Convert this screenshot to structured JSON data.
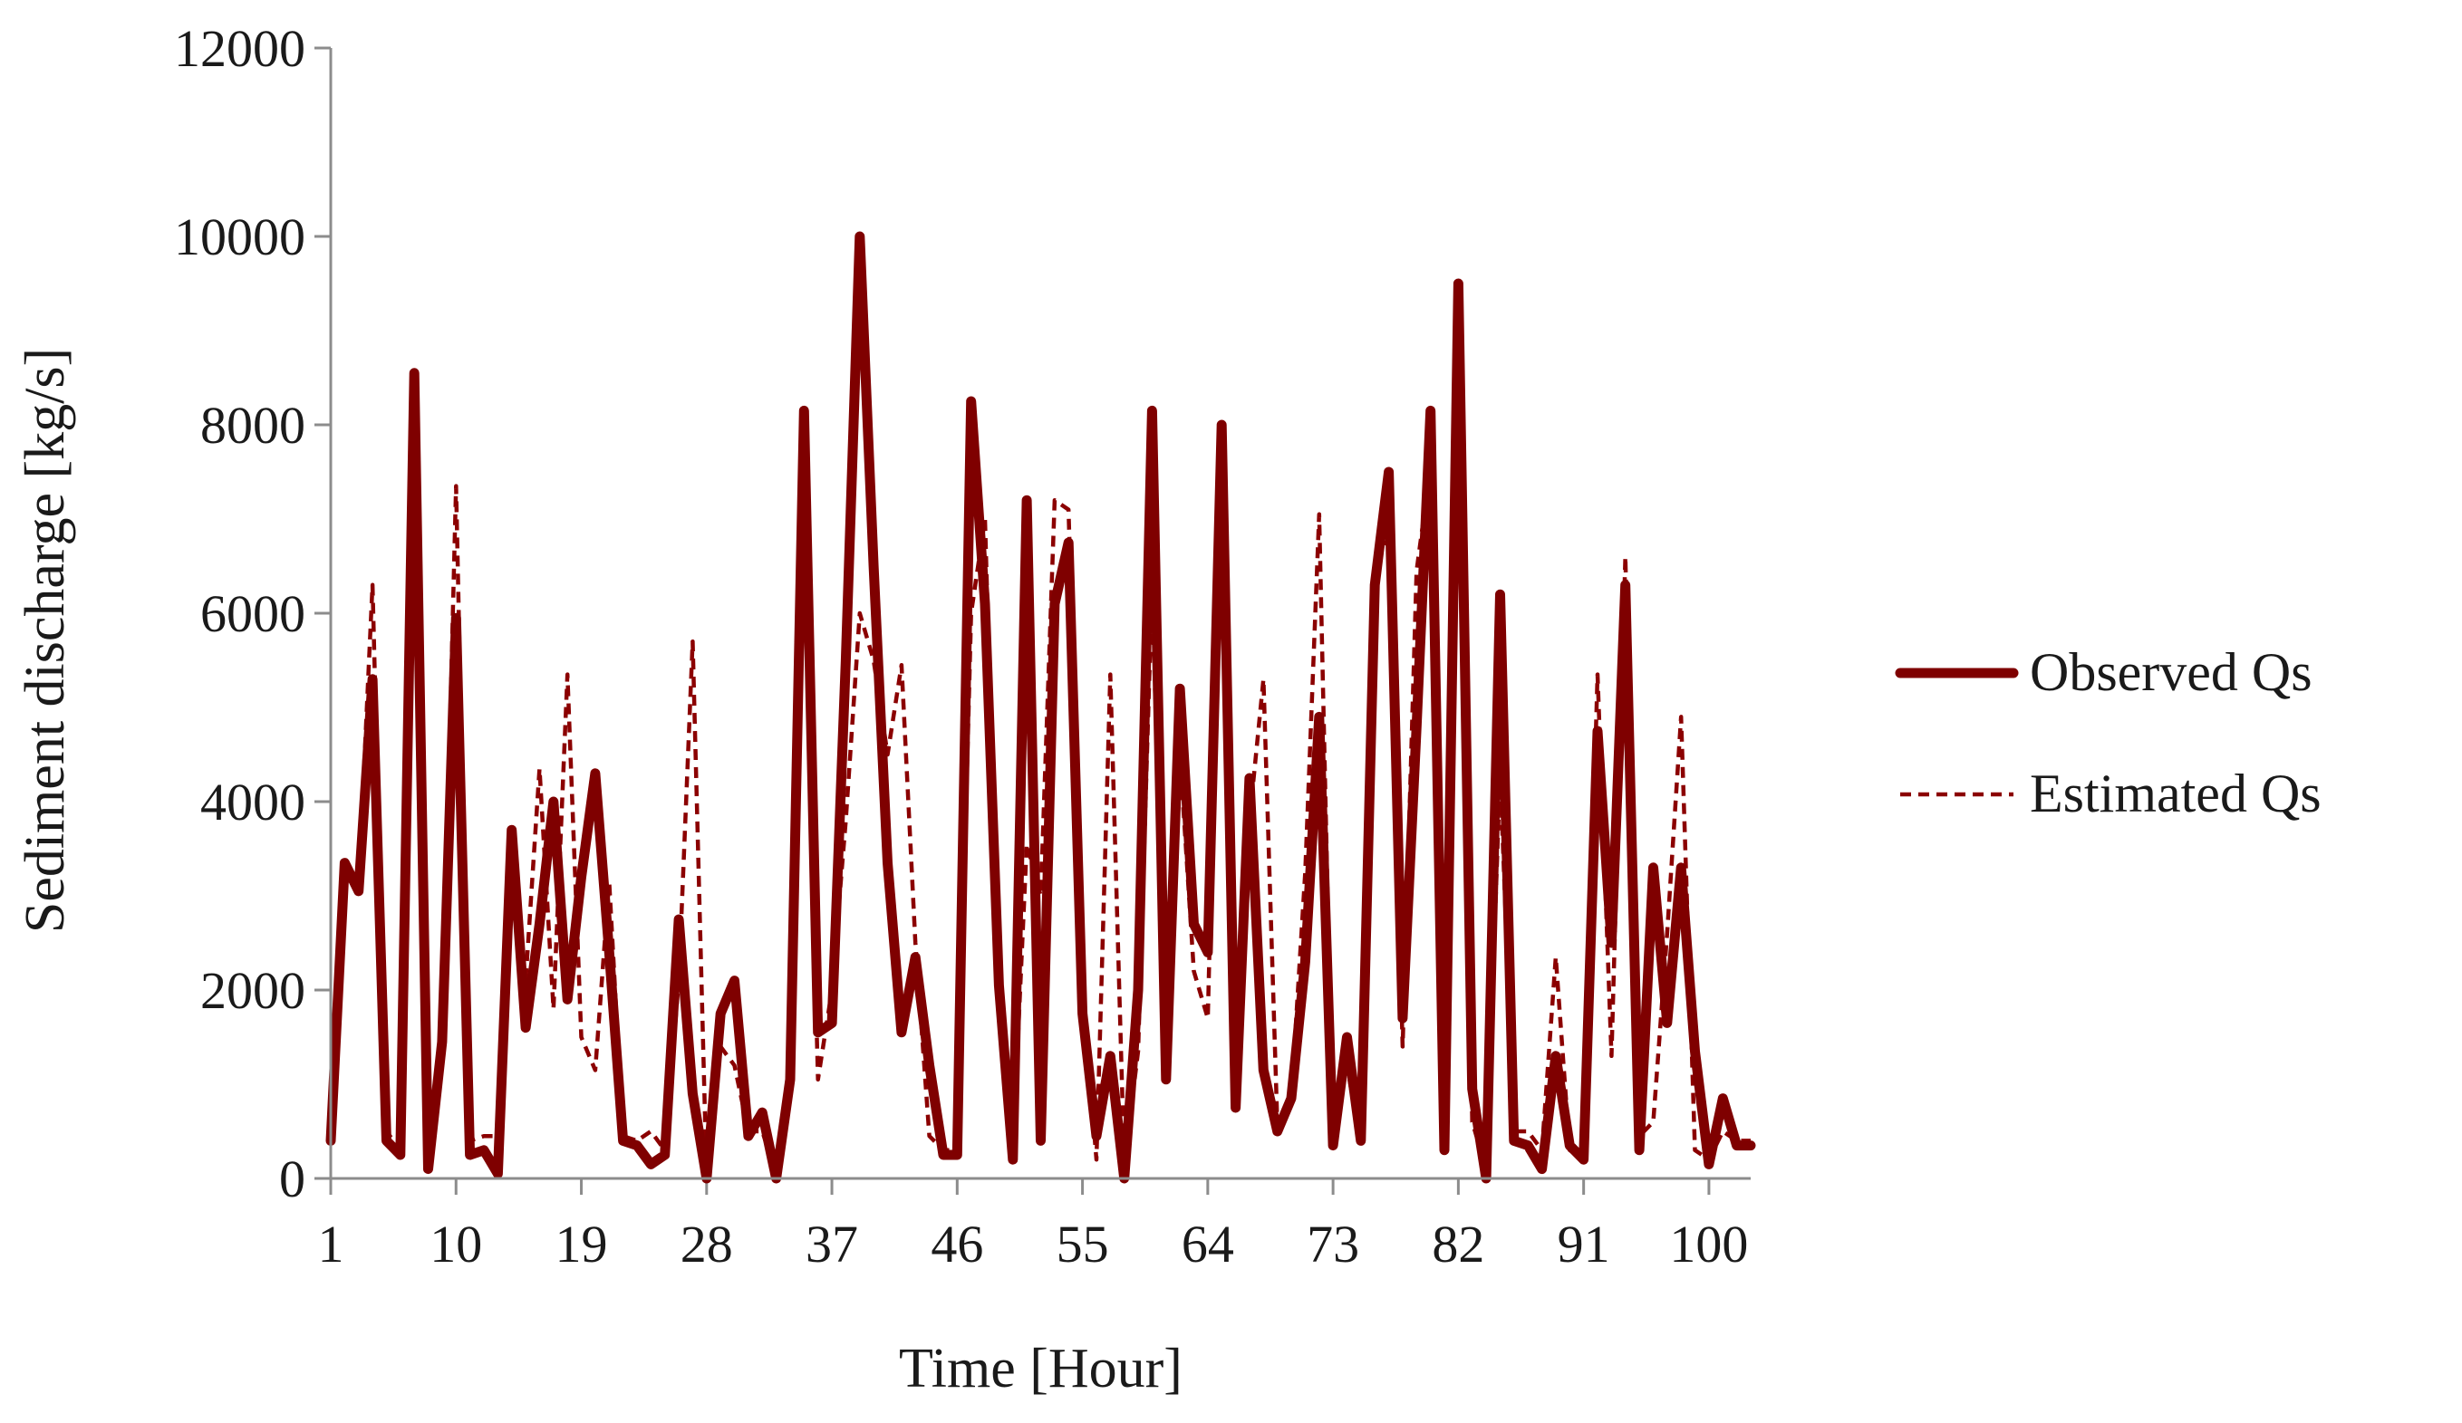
{
  "chart_data": {
    "type": "line",
    "title": "",
    "xlabel": "Time [Hour]",
    "ylabel": "Sediment discharge [kg/s]",
    "ylim": [
      0,
      12000
    ],
    "yticks": [
      0,
      2000,
      4000,
      6000,
      8000,
      10000,
      12000
    ],
    "yticks_labels": [
      "0",
      "2000",
      "4000",
      "6000",
      "8000",
      "10000",
      "12000"
    ],
    "xlim": [
      1,
      103
    ],
    "xticks": [
      1,
      10,
      19,
      28,
      37,
      46,
      55,
      64,
      73,
      82,
      91,
      100
    ],
    "xticks_labels": [
      "1",
      "10",
      "19",
      "28",
      "37",
      "46",
      "55",
      "64",
      "73",
      "82",
      "91",
      "100"
    ],
    "grid": false,
    "legend_position": "right",
    "colors": {
      "observed": "#7f0000",
      "estimated": "#8b0000",
      "axis": "#8c8c8c"
    },
    "x": [
      1,
      2,
      3,
      4,
      5,
      6,
      7,
      8,
      9,
      10,
      11,
      12,
      13,
      14,
      15,
      16,
      17,
      18,
      19,
      20,
      21,
      22,
      23,
      24,
      25,
      26,
      27,
      28,
      29,
      30,
      31,
      32,
      33,
      34,
      35,
      36,
      37,
      38,
      39,
      40,
      41,
      42,
      43,
      44,
      45,
      46,
      47,
      48,
      49,
      50,
      51,
      52,
      53,
      54,
      55,
      56,
      57,
      58,
      59,
      60,
      61,
      62,
      63,
      64,
      65,
      66,
      67,
      68,
      69,
      70,
      71,
      72,
      73,
      74,
      75,
      76,
      77,
      78,
      79,
      80,
      81,
      82,
      83,
      84,
      85,
      86,
      87,
      88,
      89,
      90,
      91,
      92,
      93,
      94,
      95,
      96,
      97,
      98,
      99,
      100,
      101,
      102,
      103
    ],
    "series": [
      {
        "name": "Observed Qs",
        "style": "solid",
        "values": [
          400,
          3350,
          3050,
          5300,
          400,
          250,
          8550,
          100,
          1450,
          5950,
          250,
          300,
          50,
          3700,
          1600,
          2700,
          4000,
          1900,
          3200,
          4300,
          2400,
          400,
          350,
          150,
          250,
          2750,
          900,
          0,
          1750,
          2100,
          450,
          700,
          0,
          1050,
          8150,
          1550,
          1650,
          5500,
          10000,
          6500,
          3350,
          1550,
          2350,
          1200,
          250,
          250,
          8250,
          6100,
          2050,
          200,
          7200,
          400,
          6100,
          6750,
          1750,
          450,
          1300,
          0,
          2000,
          8150,
          1050,
          5200,
          2700,
          2400,
          8000,
          750,
          4250,
          1150,
          500,
          850,
          2300,
          4900,
          350,
          1500,
          400,
          6300,
          7500,
          1700,
          4800,
          8150,
          300,
          9500,
          950,
          0,
          6200,
          400,
          350,
          100,
          1300,
          350,
          200,
          4750,
          2500,
          6300,
          300,
          3300,
          1650,
          3300,
          1350,
          150,
          850,
          350,
          350
        ]
      },
      {
        "name": "Estimated Qs",
        "style": "dashed",
        "values": [
          600,
          3300,
          3100,
          6300,
          500,
          300,
          7600,
          200,
          1500,
          7350,
          400,
          450,
          450,
          3000,
          2100,
          4350,
          1800,
          5350,
          1500,
          1150,
          3150,
          450,
          400,
          500,
          300,
          2100,
          5700,
          0,
          1400,
          1200,
          500,
          500,
          50,
          1000,
          6700,
          1050,
          2000,
          3800,
          6000,
          5500,
          4500,
          5450,
          2500,
          450,
          300,
          300,
          6000,
          7000,
          1800,
          300,
          3550,
          3000,
          7200,
          7100,
          2000,
          200,
          5350,
          150,
          1350,
          6300,
          1000,
          4500,
          2200,
          1700,
          7700,
          1150,
          3800,
          5300,
          550,
          850,
          3250,
          7050,
          400,
          1200,
          350,
          6500,
          6800,
          1400,
          6450,
          7550,
          500,
          8850,
          600,
          100,
          4300,
          500,
          500,
          300,
          2350,
          300,
          200,
          5350,
          1300,
          6600,
          450,
          600,
          2600,
          4900,
          300,
          200,
          500,
          400,
          400
        ]
      }
    ]
  }
}
